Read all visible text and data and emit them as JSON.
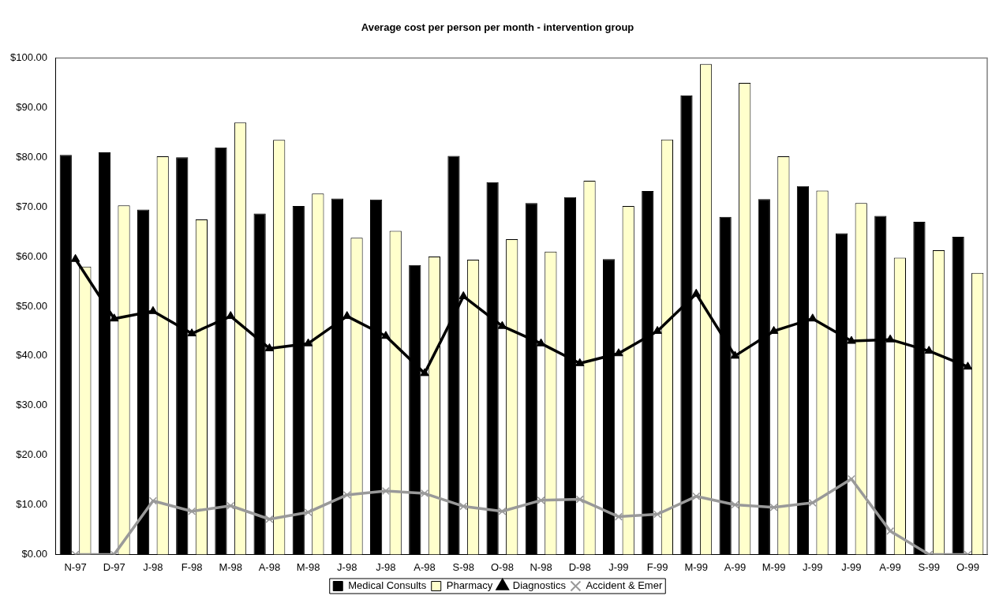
{
  "chart_data": {
    "type": "bar",
    "title": "Average cost per person per month - intervention group",
    "categories": [
      "N-97",
      "D-97",
      "J-98",
      "F-98",
      "M-98",
      "A-98",
      "M-98",
      "J-98",
      "J-98",
      "A-98",
      "S-98",
      "O-98",
      "N-98",
      "D-98",
      "J-99",
      "F-99",
      "M-99",
      "A-99",
      "M-99",
      "J-99",
      "J-99",
      "A-99",
      "S-99",
      "O-99"
    ],
    "series": [
      {
        "name": "Medical Consults",
        "color": "#000000",
        "values": [
          80.5,
          81,
          69.5,
          80,
          82,
          68.7,
          70.2,
          71.7,
          71.5,
          58.3,
          80.3,
          75,
          70.8,
          72,
          59.5,
          73.2,
          92.5,
          68,
          71.6,
          74.2,
          64.7,
          68.2,
          67,
          64
        ]
      },
      {
        "name": "Pharmacy",
        "color": "#ffffcc",
        "values": [
          58,
          70.3,
          80.2,
          67.5,
          87,
          83.5,
          72.7,
          63.8,
          65.2,
          60,
          59.4,
          63.5,
          61,
          75.3,
          70.2,
          83.6,
          98.8,
          95,
          80.2,
          73.3,
          70.8,
          59.8,
          61.3,
          56.7
        ]
      },
      {
        "name": "Diagnostics",
        "type": "line",
        "color": "#000000",
        "marker": "triangle",
        "values": [
          59.5,
          47.5,
          49,
          44.5,
          48,
          41.5,
          42.5,
          48,
          44,
          36.5,
          52,
          46,
          42.5,
          38.5,
          40.5,
          45,
          52.5,
          40,
          45,
          47.5,
          43,
          43.3,
          41,
          37.8
        ]
      },
      {
        "name": "Accident & Emer",
        "type": "line",
        "color": "#999999",
        "marker": "cross",
        "values": [
          0,
          0,
          10.8,
          8.7,
          9.8,
          7.1,
          8.5,
          12,
          12.8,
          12.3,
          9.7,
          8.7,
          10.9,
          11.1,
          7.6,
          8.1,
          11.7,
          10,
          9.5,
          10.4,
          15.2,
          4.7,
          0,
          0
        ]
      }
    ],
    "ylim": [
      0,
      100
    ],
    "yticks": [
      {
        "value": 0,
        "label": "$0.00"
      },
      {
        "value": 10,
        "label": "$10.00"
      },
      {
        "value": 20,
        "label": "$20.00"
      },
      {
        "value": 30,
        "label": "$30.00"
      },
      {
        "value": 40,
        "label": "$40.00"
      },
      {
        "value": 50,
        "label": "$50.00"
      },
      {
        "value": 60,
        "label": "$60.00"
      },
      {
        "value": 70,
        "label": "$70.00"
      },
      {
        "value": 80,
        "label": "$80.00"
      },
      {
        "value": 90,
        "label": "$90.00"
      },
      {
        "value": 100,
        "label": "$100.00"
      }
    ],
    "grid": false,
    "legend": "bottom"
  }
}
